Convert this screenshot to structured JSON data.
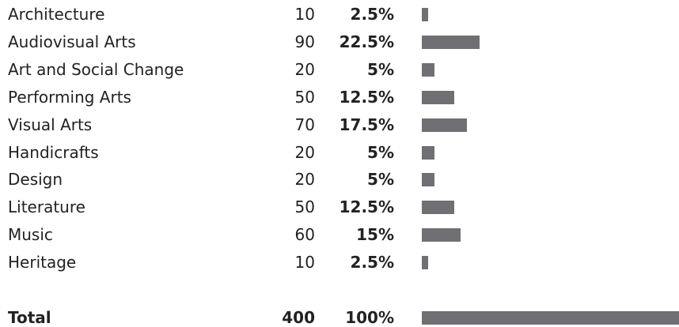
{
  "table": {
    "rows": [
      {
        "label": "Architecture",
        "count": 10,
        "percent": {
          "value": 2.5,
          "label": "2.5%"
        }
      },
      {
        "label": "Audiovisual Arts",
        "count": 90,
        "percent": {
          "value": 22.5,
          "label": "22.5%"
        }
      },
      {
        "label": "Art and Social Change",
        "count": 20,
        "percent": {
          "value": 5,
          "label": "5%"
        }
      },
      {
        "label": "Performing Arts",
        "count": 50,
        "percent": {
          "value": 12.5,
          "label": "12.5%"
        }
      },
      {
        "label": "Visual Arts",
        "count": 70,
        "percent": {
          "value": 17.5,
          "label": "17.5%"
        }
      },
      {
        "label": "Handicrafts",
        "count": 20,
        "percent": {
          "value": 5,
          "label": "5%"
        }
      },
      {
        "label": "Design",
        "count": 20,
        "percent": {
          "value": 5,
          "label": "5%"
        }
      },
      {
        "label": "Literature",
        "count": 50,
        "percent": {
          "value": 12.5,
          "label": "12.5%"
        }
      },
      {
        "label": "Music",
        "count": 60,
        "percent": {
          "value": 15,
          "label": "15%"
        }
      },
      {
        "label": "Heritage",
        "count": 10,
        "percent": {
          "value": 2.5,
          "label": "2.5%"
        }
      }
    ],
    "total": {
      "label": "Total",
      "count": 400,
      "percent": {
        "value": 100,
        "label": "100%"
      }
    }
  }
}
